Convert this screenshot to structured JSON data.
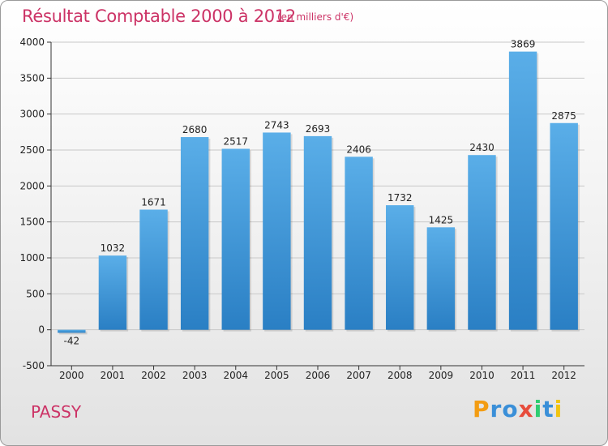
{
  "title": "Résultat Comptable 2000 à 2012",
  "subtitle": "(en milliers d'€)",
  "location": "PASSY",
  "brand": {
    "name": "Proxiti",
    "letters": [
      {
        "ch": "P",
        "color": "#f39c12"
      },
      {
        "ch": "r",
        "color": "#3a8fd8"
      },
      {
        "ch": "o",
        "color": "#3a8fd8"
      },
      {
        "ch": "x",
        "color": "#e74c3c"
      },
      {
        "ch": "i",
        "color": "#2ecc71"
      },
      {
        "ch": "t",
        "color": "#3a8fd8"
      },
      {
        "ch": "i",
        "color": "#f1c40f"
      }
    ]
  },
  "colors": {
    "accent": "#cc3366",
    "bar_top": "#5aaee8",
    "bar_bottom": "#2a7fc4",
    "grid": "#c8c8c8",
    "axis_text": "#222222"
  },
  "chart_data": {
    "type": "bar",
    "title": "Résultat Comptable 2000 à 2012",
    "xlabel": "",
    "ylabel": "",
    "categories": [
      "2000",
      "2001",
      "2002",
      "2003",
      "2004",
      "2005",
      "2006",
      "2007",
      "2008",
      "2009",
      "2010",
      "2011",
      "2012"
    ],
    "values": [
      -42,
      1032,
      1671,
      2680,
      2517,
      2743,
      2693,
      2406,
      1732,
      1425,
      2430,
      3869,
      2875
    ],
    "ylim": [
      -500,
      4000
    ],
    "yticks": [
      -500,
      0,
      500,
      1000,
      1500,
      2000,
      2500,
      3000,
      3500,
      4000
    ],
    "grid": true
  }
}
